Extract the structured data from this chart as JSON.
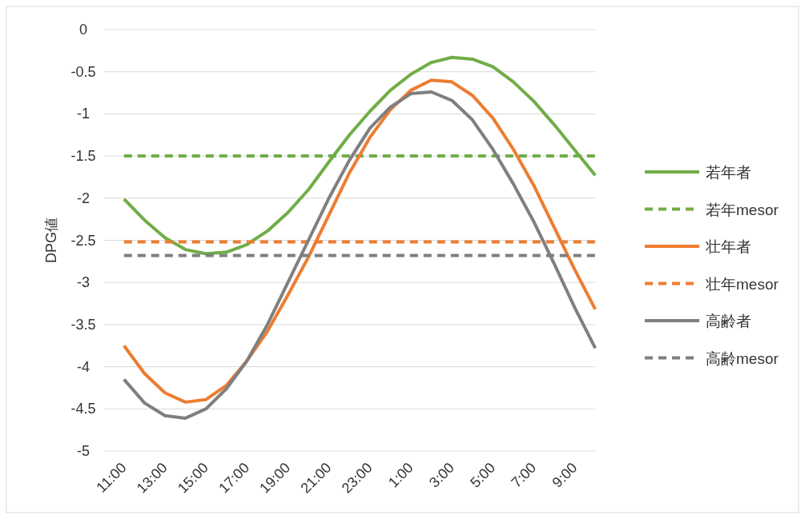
{
  "chart_data": {
    "type": "line",
    "ylabel": "DPG値",
    "categories": [
      "11:00",
      null,
      "13:00",
      null,
      "15:00",
      null,
      "17:00",
      null,
      "19:00",
      null,
      "21:00",
      null,
      "23:00",
      null,
      "1:00",
      null,
      "3:00",
      null,
      "5:00",
      null,
      "7:00",
      null,
      "9:00",
      null
    ],
    "ylim": [
      -5,
      0
    ],
    "yticks": [
      {
        "value": -5,
        "label": "-5"
      },
      {
        "value": -4.5,
        "label": "-4.5"
      },
      {
        "value": -4,
        "label": "-4"
      },
      {
        "value": -3.5,
        "label": "-3.5"
      },
      {
        "value": -3,
        "label": "-3"
      },
      {
        "value": -2.5,
        "label": "-2.5"
      },
      {
        "value": -2,
        "label": "-2"
      },
      {
        "value": -1.5,
        "label": "-1.5"
      },
      {
        "value": -1,
        "label": "-1"
      },
      {
        "value": -0.5,
        "label": "-0.5"
      },
      {
        "value": 0,
        "label": "0"
      }
    ],
    "grid": "y",
    "legend": "right",
    "marker": "none",
    "series": [
      {
        "name": "若年者",
        "color": "#70ad47",
        "line_style": "solid",
        "values": [
          -2.01,
          -2.26,
          -2.47,
          -2.61,
          -2.66,
          -2.64,
          -2.55,
          -2.39,
          -2.17,
          -1.9,
          -1.57,
          -1.25,
          -0.97,
          -0.72,
          -0.53,
          -0.39,
          -0.33,
          -0.35,
          -0.44,
          -0.62,
          -0.85,
          -1.13,
          -1.43,
          -1.73
        ]
      },
      {
        "name": "若年mesor",
        "color": "#70ad47",
        "line_style": "dashed",
        "values": [
          -1.5,
          -1.5,
          -1.5,
          -1.5,
          -1.5,
          -1.5,
          -1.5,
          -1.5,
          -1.5,
          -1.5,
          -1.5,
          -1.5,
          -1.5,
          -1.5,
          -1.5,
          -1.5,
          -1.5,
          -1.5,
          -1.5,
          -1.5,
          -1.5,
          -1.5,
          -1.5,
          -1.5
        ]
      },
      {
        "name": "壮年者",
        "color": "#ed7d31",
        "line_style": "solid",
        "values": [
          -3.75,
          -4.08,
          -4.31,
          -4.42,
          -4.39,
          -4.22,
          -3.93,
          -3.58,
          -3.15,
          -2.7,
          -2.2,
          -1.7,
          -1.28,
          -0.95,
          -0.72,
          -0.6,
          -0.62,
          -0.78,
          -1.05,
          -1.42,
          -1.85,
          -2.35,
          -2.85,
          -3.32
        ]
      },
      {
        "name": "壮年mesor",
        "color": "#ed7d31",
        "line_style": "dashed",
        "values": [
          -2.52,
          -2.52,
          -2.52,
          -2.52,
          -2.52,
          -2.52,
          -2.52,
          -2.52,
          -2.52,
          -2.52,
          -2.52,
          -2.52,
          -2.52,
          -2.52,
          -2.52,
          -2.52,
          -2.52,
          -2.52,
          -2.52,
          -2.52,
          -2.52,
          -2.52,
          -2.52,
          -2.52
        ]
      },
      {
        "name": "高齢者",
        "color": "#7f7f7f",
        "line_style": "solid",
        "values": [
          -4.15,
          -4.43,
          -4.58,
          -4.61,
          -4.5,
          -4.26,
          -3.93,
          -3.5,
          -3.0,
          -2.5,
          -2.0,
          -1.55,
          -1.17,
          -0.92,
          -0.76,
          -0.74,
          -0.84,
          -1.07,
          -1.42,
          -1.83,
          -2.28,
          -2.78,
          -3.3,
          -3.78
        ]
      },
      {
        "name": "高齢mesor",
        "color": "#7f7f7f",
        "line_style": "dashed",
        "values": [
          -2.68,
          -2.68,
          -2.68,
          -2.68,
          -2.68,
          -2.68,
          -2.68,
          -2.68,
          -2.68,
          -2.68,
          -2.68,
          -2.68,
          -2.68,
          -2.68,
          -2.68,
          -2.68,
          -2.68,
          -2.68,
          -2.68,
          -2.68,
          -2.68,
          -2.68,
          -2.68,
          -2.68
        ]
      }
    ]
  }
}
